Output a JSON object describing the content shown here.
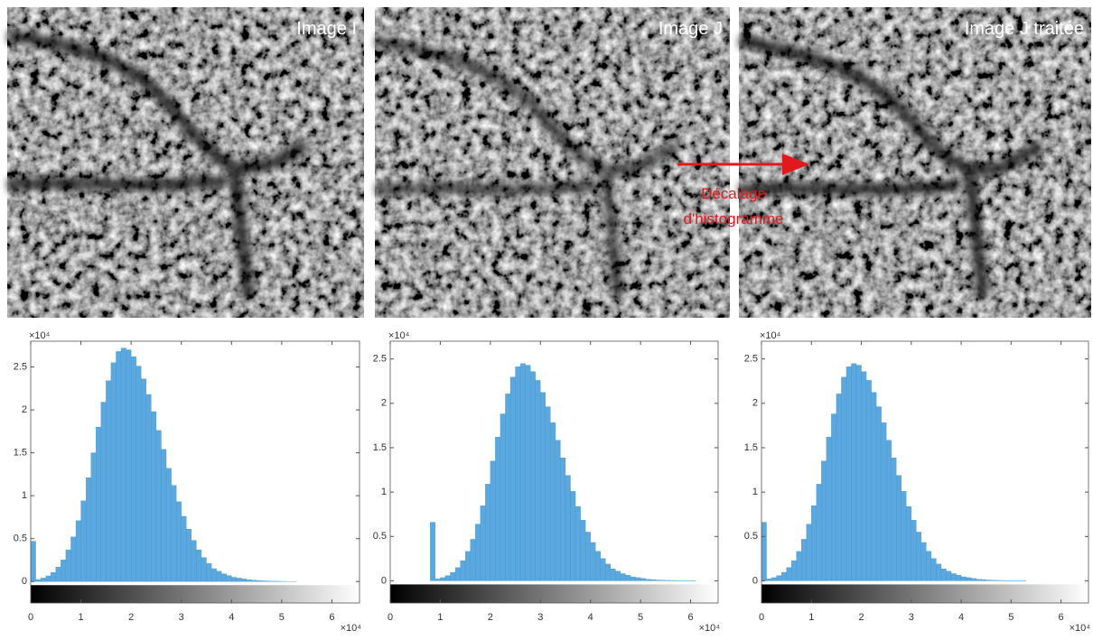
{
  "images": [
    {
      "label": "Image I"
    },
    {
      "label": "Image J"
    },
    {
      "label": "Image J traitée"
    }
  ],
  "annotation": {
    "lines": [
      "Décalage",
      "d'histogramme"
    ]
  },
  "chart_data": [
    {
      "type": "histogram",
      "color": "#5aa8de",
      "y_multiplier": "×10⁴",
      "x_multiplier": "×10⁴",
      "xlim": [
        0,
        6.55
      ],
      "xticks": [
        0,
        1,
        2,
        3,
        4,
        5,
        6
      ],
      "ylim": [
        -0.25,
        2.8
      ],
      "yticks": [
        0,
        0.5,
        1,
        1.5,
        2,
        2.5
      ],
      "bins": [
        0,
        0.1,
        0.2,
        0.3,
        0.4,
        0.5,
        0.6,
        0.7,
        0.8,
        0.9,
        1,
        1.1,
        1.2,
        1.3,
        1.4,
        1.5,
        1.6,
        1.7,
        1.8,
        1.9,
        2,
        2.1,
        2.2,
        2.3,
        2.4,
        2.5,
        2.6,
        2.7,
        2.8,
        2.9,
        3,
        3.1,
        3.2,
        3.3,
        3.4,
        3.5,
        3.6,
        3.7,
        3.8,
        3.9,
        4,
        4.1,
        4.2,
        4.3,
        4.4,
        4.5,
        4.6,
        4.7,
        4.8,
        4.9,
        5,
        5.1,
        5.2,
        5.3,
        5.4,
        5.5,
        5.6,
        5.7,
        5.8,
        5.9,
        6,
        6.1,
        6.2,
        6.3,
        6.4
      ],
      "values": [
        0.47,
        0.023,
        0.04,
        0.066,
        0.106,
        0.167,
        0.252,
        0.368,
        0.52,
        0.71,
        0.94,
        1.21,
        1.5,
        1.8,
        2.09,
        2.34,
        2.55,
        2.68,
        2.72,
        2.7,
        2.62,
        2.51,
        2.36,
        2.18,
        1.98,
        1.76,
        1.54,
        1.32,
        1.12,
        0.93,
        0.76,
        0.61,
        0.48,
        0.37,
        0.28,
        0.21,
        0.15,
        0.12,
        0.09,
        0.07,
        0.05,
        0.04,
        0.03,
        0.02,
        0.015,
        0.01,
        0.008,
        0.006,
        0.004,
        0.003,
        0.002,
        0.001,
        0.001,
        0,
        0,
        0,
        0,
        0,
        0,
        0,
        0,
        0,
        0,
        0
      ]
    },
    {
      "type": "histogram",
      "color": "#5aa8de",
      "y_multiplier": "×10⁴",
      "x_multiplier": "×10⁴",
      "xlim": [
        0,
        6.55
      ],
      "xticks": [
        0,
        1,
        2,
        3,
        4,
        5,
        6
      ],
      "ylim": [
        -0.25,
        2.7
      ],
      "yticks": [
        0,
        0.5,
        1,
        1.5,
        2,
        2.5
      ],
      "bins": [
        0,
        0.1,
        0.2,
        0.3,
        0.4,
        0.5,
        0.6,
        0.7,
        0.8,
        0.9,
        1,
        1.1,
        1.2,
        1.3,
        1.4,
        1.5,
        1.6,
        1.7,
        1.8,
        1.9,
        2,
        2.1,
        2.2,
        2.3,
        2.4,
        2.5,
        2.6,
        2.7,
        2.8,
        2.9,
        3,
        3.1,
        3.2,
        3.3,
        3.4,
        3.5,
        3.6,
        3.7,
        3.8,
        3.9,
        4,
        4.1,
        4.2,
        4.3,
        4.4,
        4.5,
        4.6,
        4.7,
        4.8,
        4.9,
        5,
        5.1,
        5.2,
        5.3,
        5.4,
        5.5,
        5.6,
        5.7,
        5.8,
        5.9,
        6,
        6.1,
        6.2,
        6.3,
        6.4
      ],
      "values": [
        0,
        0,
        0,
        0,
        0,
        0,
        0,
        0,
        0.66,
        0.021,
        0.036,
        0.059,
        0.095,
        0.15,
        0.227,
        0.331,
        0.468,
        0.639,
        0.846,
        1.089,
        1.35,
        1.62,
        1.881,
        2.106,
        2.295,
        2.412,
        2.448,
        2.43,
        2.358,
        2.259,
        2.124,
        1.962,
        1.782,
        1.584,
        1.386,
        1.188,
        1.008,
        0.837,
        0.684,
        0.549,
        0.432,
        0.333,
        0.252,
        0.189,
        0.135,
        0.108,
        0.081,
        0.063,
        0.045,
        0.036,
        0.027,
        0.018,
        0.014,
        0.009,
        0.007,
        0.005,
        0.004,
        0.003,
        0.002,
        0.001,
        0.001,
        0,
        0,
        0
      ]
    },
    {
      "type": "histogram",
      "color": "#5aa8de",
      "y_multiplier": "×10⁴",
      "x_multiplier": "×10⁴",
      "xlim": [
        0,
        6.55
      ],
      "xticks": [
        0,
        1,
        2,
        3,
        4,
        5,
        6
      ],
      "ylim": [
        -0.25,
        2.7
      ],
      "yticks": [
        0,
        0.5,
        1,
        1.5,
        2,
        2.5
      ],
      "bins": [
        0,
        0.1,
        0.2,
        0.3,
        0.4,
        0.5,
        0.6,
        0.7,
        0.8,
        0.9,
        1,
        1.1,
        1.2,
        1.3,
        1.4,
        1.5,
        1.6,
        1.7,
        1.8,
        1.9,
        2,
        2.1,
        2.2,
        2.3,
        2.4,
        2.5,
        2.6,
        2.7,
        2.8,
        2.9,
        3,
        3.1,
        3.2,
        3.3,
        3.4,
        3.5,
        3.6,
        3.7,
        3.8,
        3.9,
        4,
        4.1,
        4.2,
        4.3,
        4.4,
        4.5,
        4.6,
        4.7,
        4.8,
        4.9,
        5,
        5.1,
        5.2,
        5.3,
        5.4,
        5.5,
        5.6,
        5.7,
        5.8,
        5.9,
        6,
        6.1,
        6.2,
        6.3,
        6.4
      ],
      "values": [
        0.66,
        0.021,
        0.036,
        0.059,
        0.095,
        0.15,
        0.227,
        0.331,
        0.468,
        0.639,
        0.846,
        1.089,
        1.35,
        1.62,
        1.881,
        2.106,
        2.295,
        2.412,
        2.448,
        2.43,
        2.358,
        2.259,
        2.124,
        1.962,
        1.782,
        1.584,
        1.386,
        1.188,
        1.008,
        0.837,
        0.684,
        0.549,
        0.432,
        0.333,
        0.252,
        0.189,
        0.135,
        0.108,
        0.081,
        0.063,
        0.045,
        0.036,
        0.027,
        0.018,
        0.014,
        0.009,
        0.007,
        0.005,
        0.004,
        0.003,
        0.002,
        0.001,
        0.001,
        0,
        0,
        0,
        0,
        0,
        0,
        0,
        0,
        0,
        0,
        0
      ]
    }
  ]
}
